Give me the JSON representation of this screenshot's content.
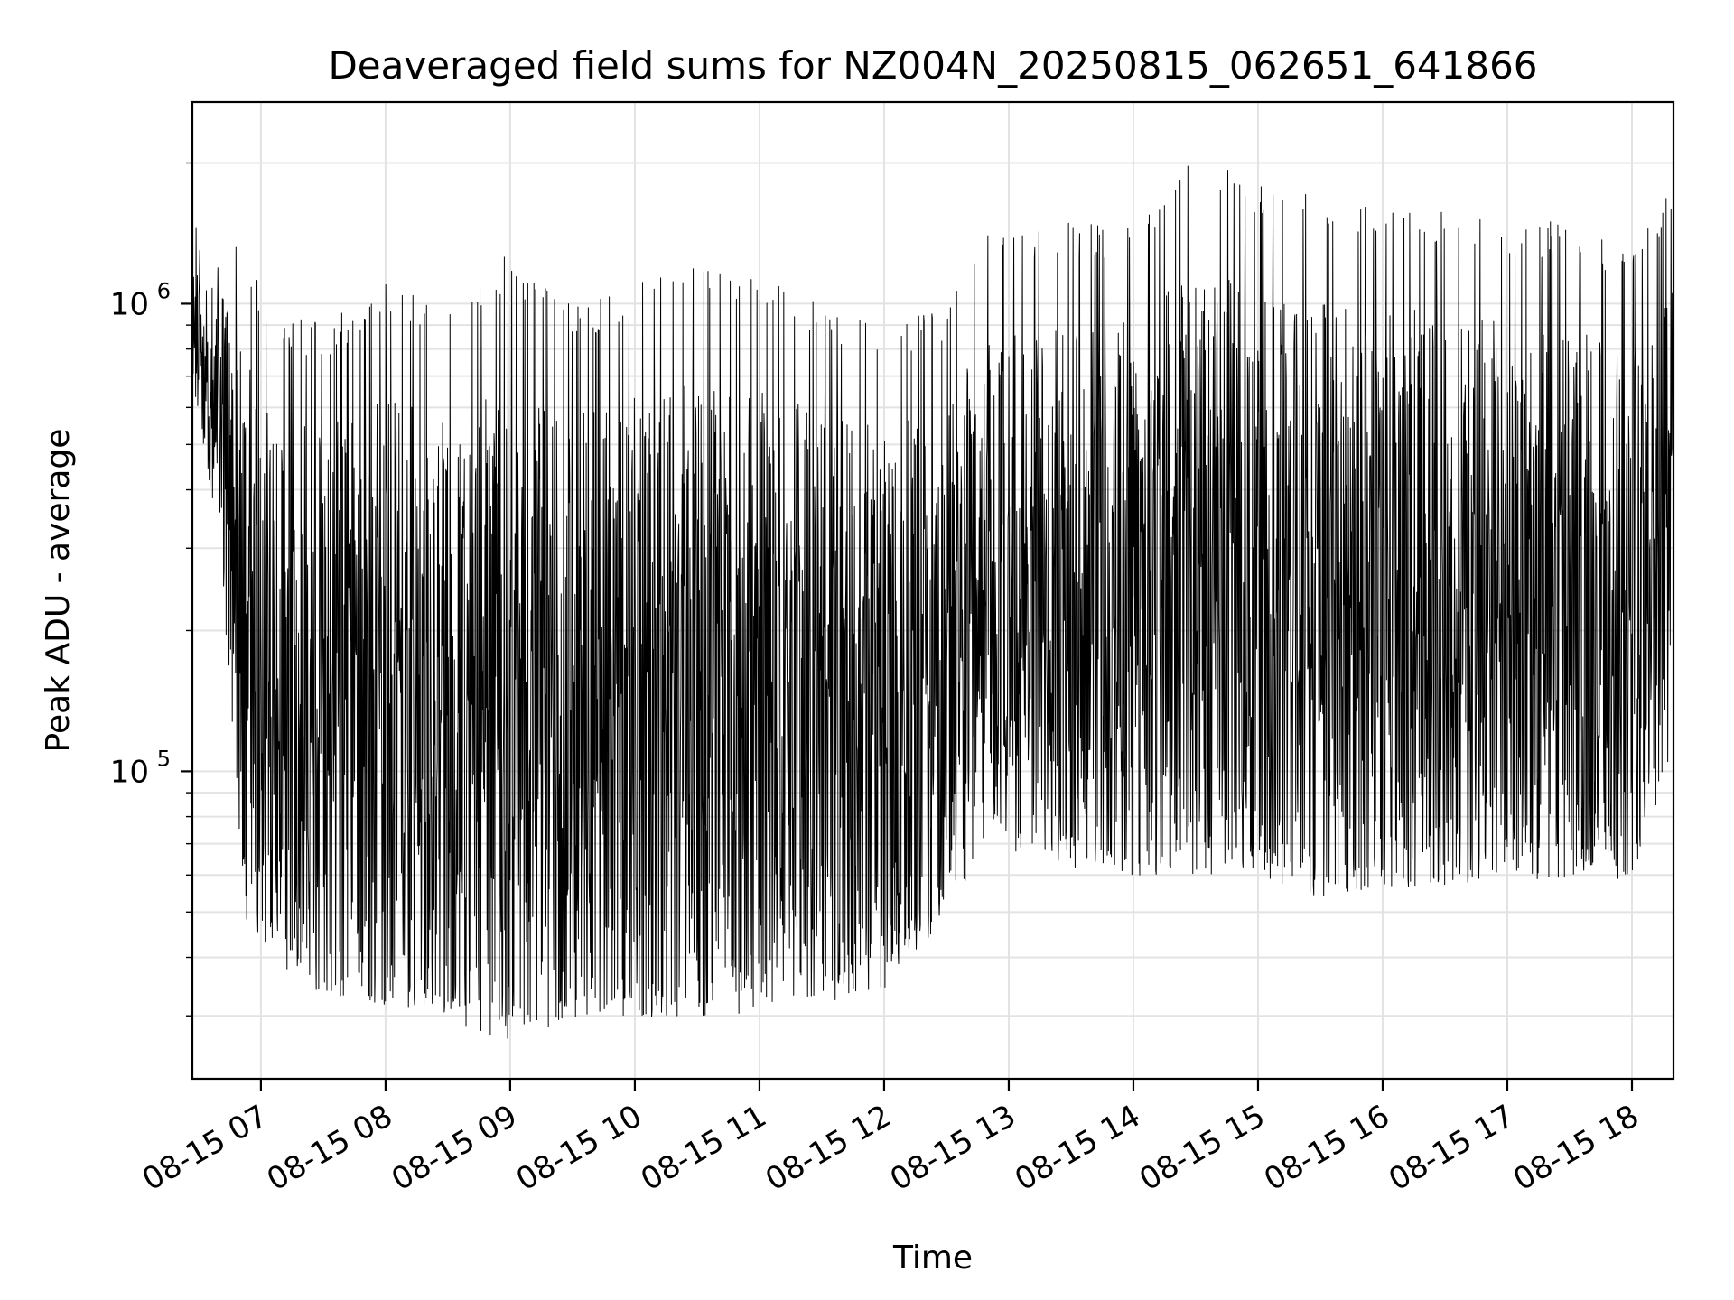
{
  "chart_data": {
    "type": "line",
    "title": "Deaveraged field sums for NZ004N_20250815_062651_641866",
    "xlabel": "Time",
    "ylabel": "Peak ADU - average",
    "yscale": "log",
    "ylim": [
      22000,
      2700000
    ],
    "xlim": [
      "2025-08-15 06:27",
      "2025-08-15 18:20"
    ],
    "grid": true,
    "x_ticks": [
      "08-15 07",
      "08-15 08",
      "08-15 09",
      "08-15 10",
      "08-15 11",
      "08-15 12",
      "08-15 13",
      "08-15 14",
      "08-15 15",
      "08-15 16",
      "08-15 17",
      "08-15 18"
    ],
    "x_tick_times": [
      "2025-08-15 07:00",
      "2025-08-15 08:00",
      "2025-08-15 09:00",
      "2025-08-15 10:00",
      "2025-08-15 11:00",
      "2025-08-15 12:00",
      "2025-08-15 13:00",
      "2025-08-15 14:00",
      "2025-08-15 15:00",
      "2025-08-15 16:00",
      "2025-08-15 17:00",
      "2025-08-15 18:00"
    ],
    "y_ticks": [
      {
        "value": 100000,
        "base": "10",
        "exp": "5"
      },
      {
        "value": 1000000,
        "base": "10",
        "exp": "6"
      }
    ],
    "series": [
      {
        "color": "#000000",
        "envelope": [
          {
            "time": "2025-08-15 06:27",
            "low": 700000,
            "high": 1500000
          },
          {
            "time": "2025-08-15 06:40",
            "low": 300000,
            "high": 1400000
          },
          {
            "time": "2025-08-15 06:52",
            "low": 48000,
            "high": 1300000
          },
          {
            "time": "2025-08-15 07:05",
            "low": 40000,
            "high": 1000000
          },
          {
            "time": "2025-08-15 07:30",
            "low": 33000,
            "high": 900000
          },
          {
            "time": "2025-08-15 08:00",
            "low": 31000,
            "high": 1100000
          },
          {
            "time": "2025-08-15 08:30",
            "low": 29000,
            "high": 1000000
          },
          {
            "time": "2025-08-15 09:00",
            "low": 27000,
            "high": 1300000
          },
          {
            "time": "2025-08-15 09:30",
            "low": 28000,
            "high": 1000000
          },
          {
            "time": "2025-08-15 10:00",
            "low": 30000,
            "high": 1100000
          },
          {
            "time": "2025-08-15 10:30",
            "low": 30000,
            "high": 1200000
          },
          {
            "time": "2025-08-15 11:00",
            "low": 31000,
            "high": 1150000
          },
          {
            "time": "2025-08-15 11:30",
            "low": 32000,
            "high": 1000000
          },
          {
            "time": "2025-08-15 12:00",
            "low": 34000,
            "high": 900000
          },
          {
            "time": "2025-08-15 12:30",
            "low": 48000,
            "high": 1000000
          },
          {
            "time": "2025-08-15 12:50",
            "low": 70000,
            "high": 1400000
          },
          {
            "time": "2025-08-15 13:30",
            "low": 62000,
            "high": 1500000
          },
          {
            "time": "2025-08-15 14:00",
            "low": 60000,
            "high": 1500000
          },
          {
            "time": "2025-08-15 14:30",
            "low": 60000,
            "high": 2100000
          },
          {
            "time": "2025-08-15 15:00",
            "low": 58000,
            "high": 1800000
          },
          {
            "time": "2025-08-15 15:30",
            "low": 55000,
            "high": 1700000
          },
          {
            "time": "2025-08-15 16:00",
            "low": 55000,
            "high": 1700000
          },
          {
            "time": "2025-08-15 16:30",
            "low": 58000,
            "high": 1600000
          },
          {
            "time": "2025-08-15 17:00",
            "low": 60000,
            "high": 1500000
          },
          {
            "time": "2025-08-15 17:30",
            "low": 58000,
            "high": 1500000
          },
          {
            "time": "2025-08-15 18:00",
            "low": 60000,
            "high": 1300000
          },
          {
            "time": "2025-08-15 18:20",
            "low": 100000,
            "high": 1800000
          }
        ]
      }
    ]
  }
}
